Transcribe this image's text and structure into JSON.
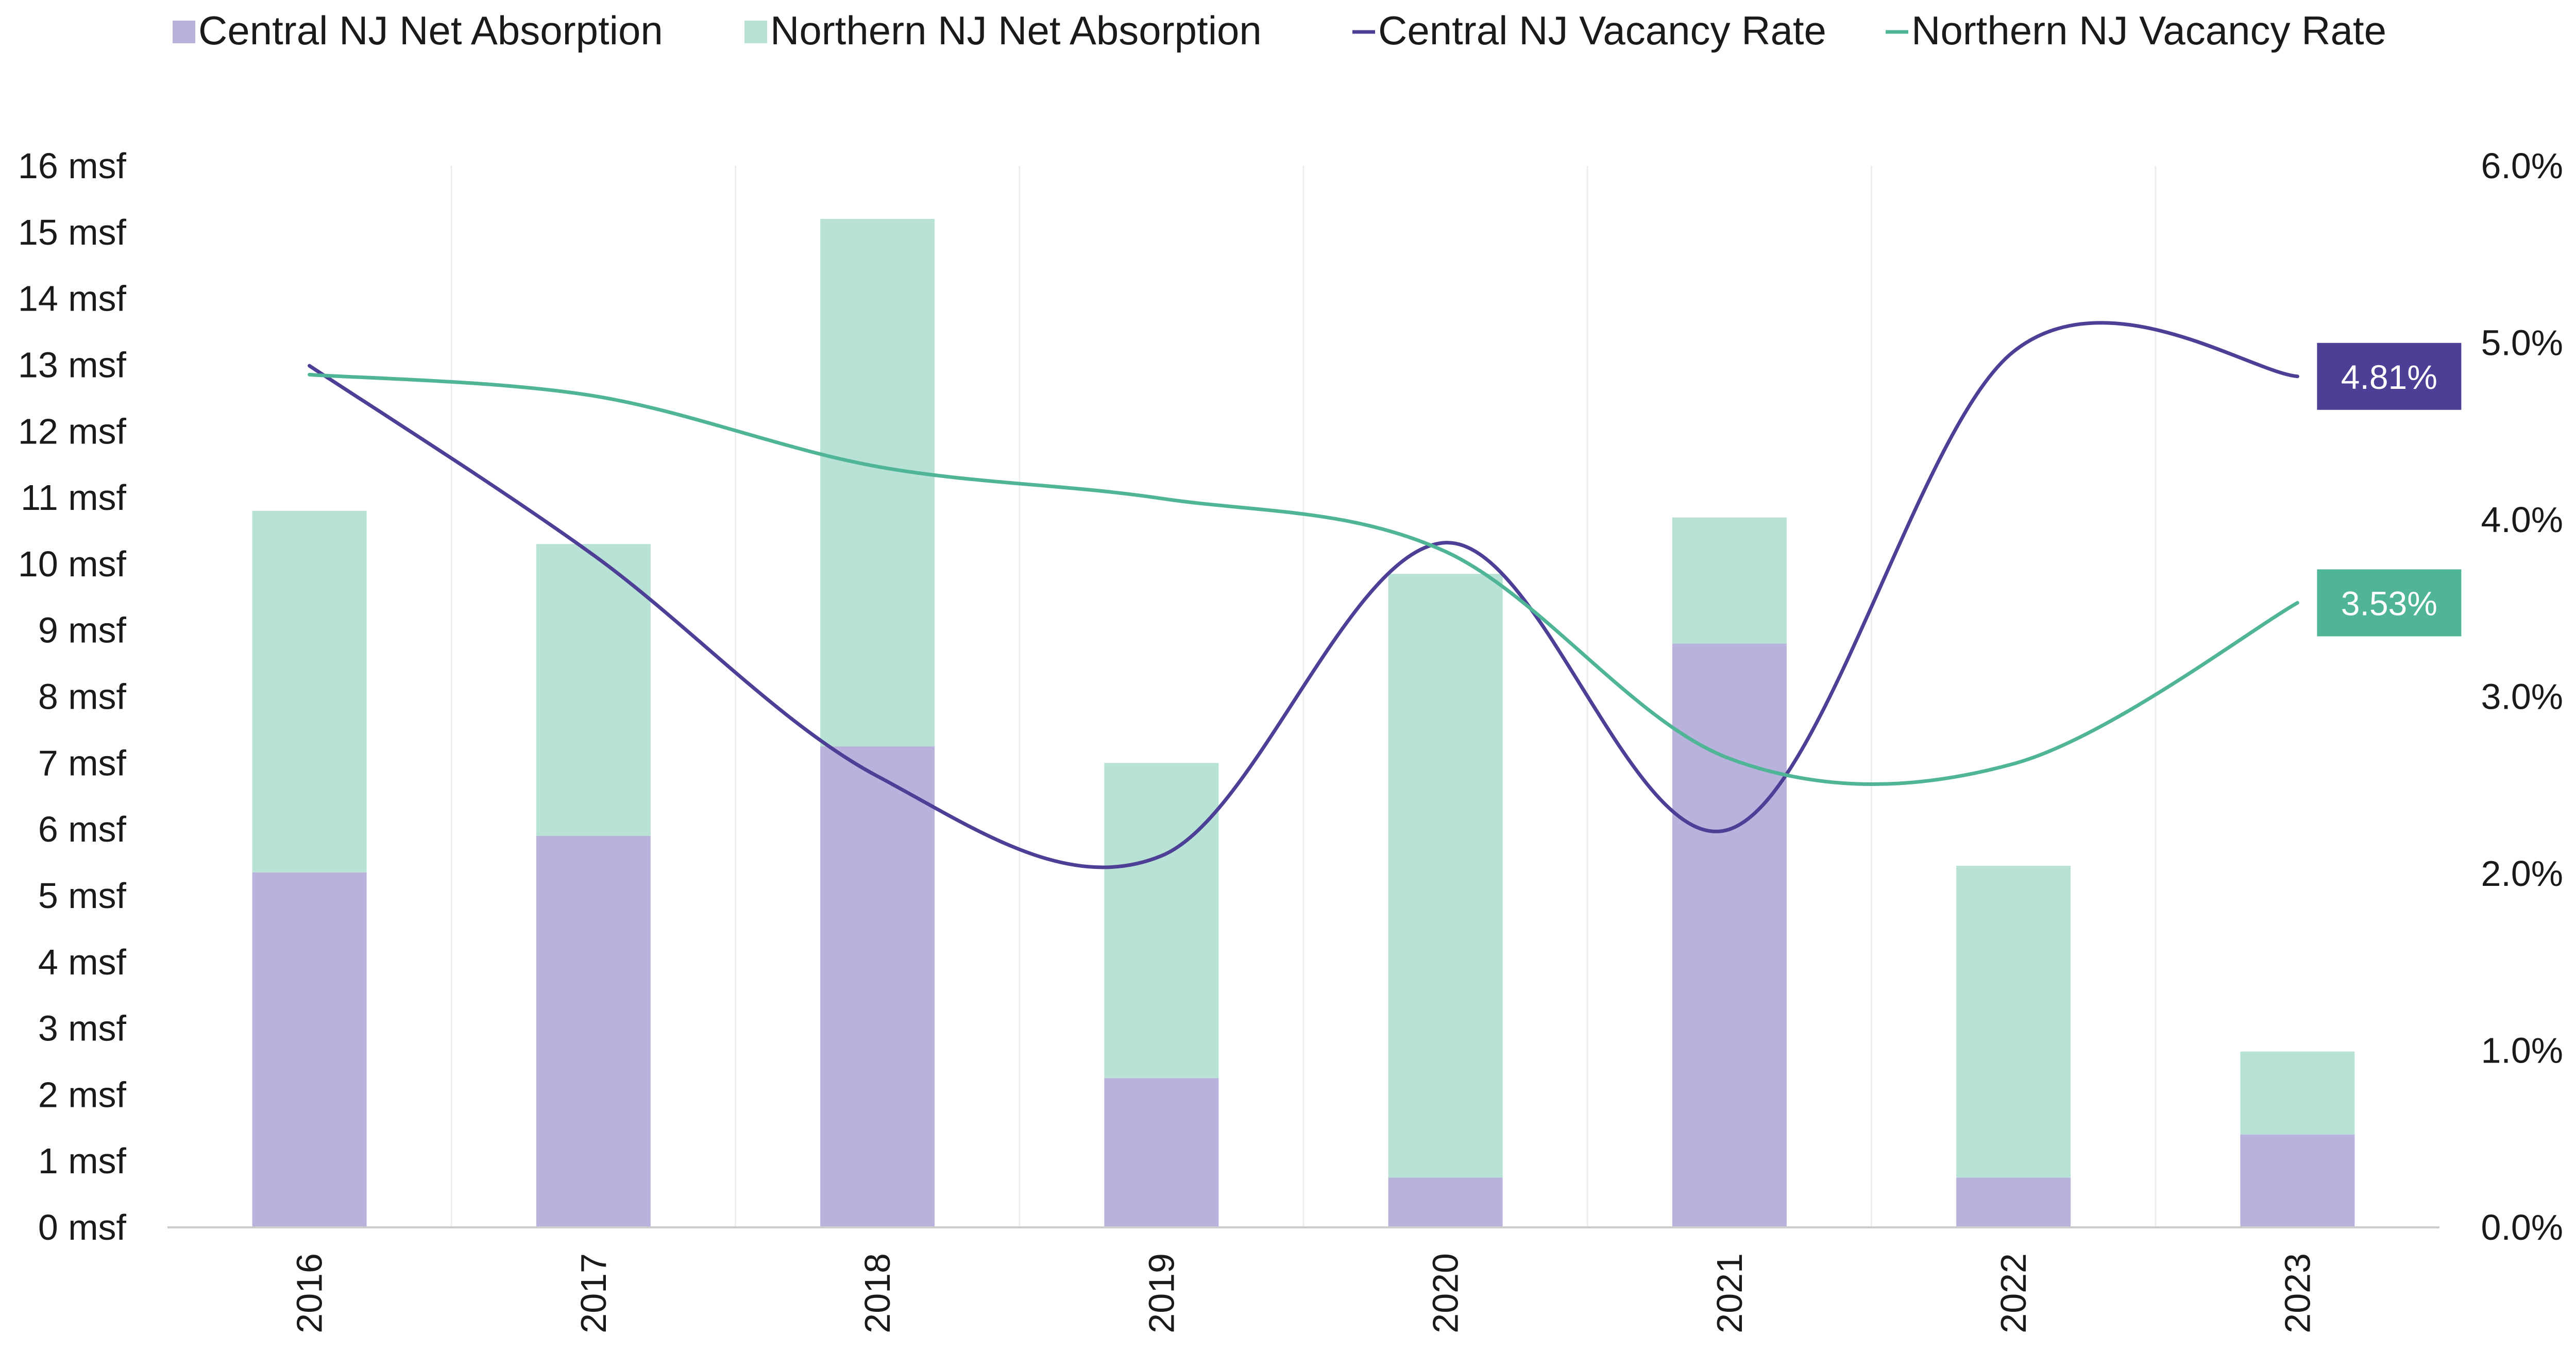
{
  "colors": {
    "central_bar": "#b8b2dc",
    "northern_bar": "#b7e2d5",
    "central_line": "#4e3f96",
    "northern_line": "#4fb596",
    "gridline": "#ededed",
    "axis": "#cccccc"
  },
  "legend": [
    {
      "label": "Central NJ Net Absorption",
      "kind": "box",
      "color_key": "central_bar"
    },
    {
      "label": "Northern NJ Net Absorption",
      "kind": "box",
      "color_key": "northern_bar"
    },
    {
      "label": "Central NJ Vacancy Rate",
      "kind": "line",
      "color_key": "central_line"
    },
    {
      "label": "Northern NJ Vacancy Rate",
      "kind": "line",
      "color_key": "northern_line"
    }
  ],
  "chart_data": {
    "type": "bar",
    "stacked": true,
    "categories": [
      "2016",
      "2017",
      "2018",
      "2019",
      "2020",
      "2021",
      "2022",
      "2023"
    ],
    "x_tick_rotation": "vertical",
    "series": [
      {
        "name": "Central NJ Net Absorption",
        "type": "bar",
        "axis": "left",
        "values": [
          5.35,
          5.9,
          7.25,
          2.25,
          0.75,
          8.8,
          0.75,
          1.4
        ]
      },
      {
        "name": "Northern NJ Net Absorption",
        "type": "bar",
        "axis": "left",
        "values": [
          5.45,
          4.4,
          7.95,
          4.75,
          9.1,
          1.9,
          4.7,
          1.25
        ]
      },
      {
        "name": "Central NJ Vacancy Rate",
        "type": "line",
        "axis": "right",
        "smooth": true,
        "values": [
          4.87,
          3.8,
          2.55,
          2.1,
          3.87,
          2.25,
          4.95,
          4.81
        ],
        "end_label": "4.81%"
      },
      {
        "name": "Northern NJ Vacancy Rate",
        "type": "line",
        "axis": "right",
        "smooth": true,
        "values": [
          4.82,
          4.7,
          4.3,
          4.12,
          3.82,
          2.65,
          2.62,
          3.53
        ],
        "end_label": "3.53%"
      }
    ],
    "y_left": {
      "ylim": [
        0,
        16
      ],
      "ticks": [
        "0 msf",
        "1 msf",
        "2 msf",
        "3 msf",
        "4 msf",
        "5 msf",
        "6 msf",
        "7 msf",
        "8 msf",
        "9 msf",
        "10 msf",
        "11 msf",
        "12 msf",
        "13 msf",
        "14 msf",
        "15 msf",
        "16 msf"
      ]
    },
    "y_right": {
      "ylim": [
        0,
        6
      ],
      "ticks": [
        "0.0%",
        "1.0%",
        "2.0%",
        "3.0%",
        "4.0%",
        "5.0%",
        "6.0%"
      ]
    },
    "legend_position": "top",
    "grid": "vertical"
  }
}
